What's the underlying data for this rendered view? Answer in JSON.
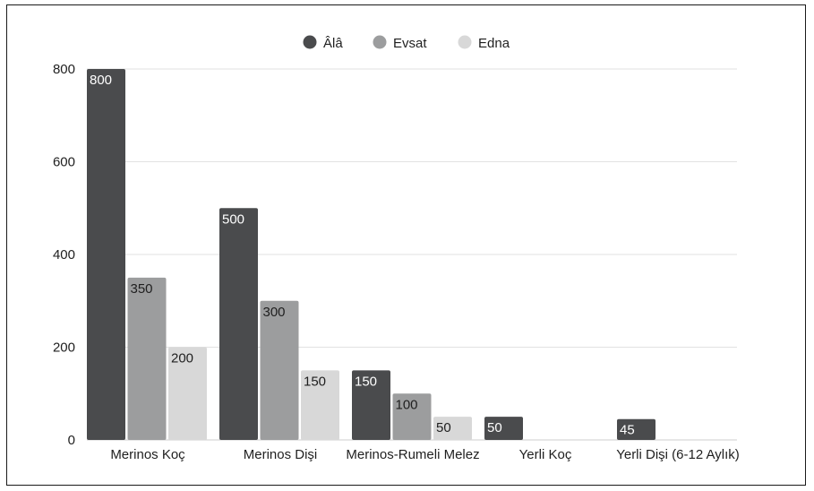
{
  "chart_data": {
    "type": "bar",
    "categories": [
      "Merinos Koç",
      "Merinos Dişi",
      "Merinos-Rumeli Melez",
      "Yerli Koç",
      "Yerli Dişi (6-12 Aylık)"
    ],
    "series": [
      {
        "name": "Âlâ",
        "color": "#4a4b4d",
        "values": [
          800,
          500,
          150,
          50,
          45
        ]
      },
      {
        "name": "Evsat",
        "color": "#9c9d9e",
        "values": [
          350,
          300,
          100,
          null,
          null
        ]
      },
      {
        "name": "Edna",
        "color": "#d8d8d8",
        "values": [
          200,
          150,
          50,
          null,
          null
        ]
      }
    ],
    "yticks": [
      0,
      200,
      400,
      600,
      800
    ],
    "ylim": [
      0,
      800
    ],
    "grid": true,
    "legend_position": "top-center",
    "data_labels": true
  }
}
